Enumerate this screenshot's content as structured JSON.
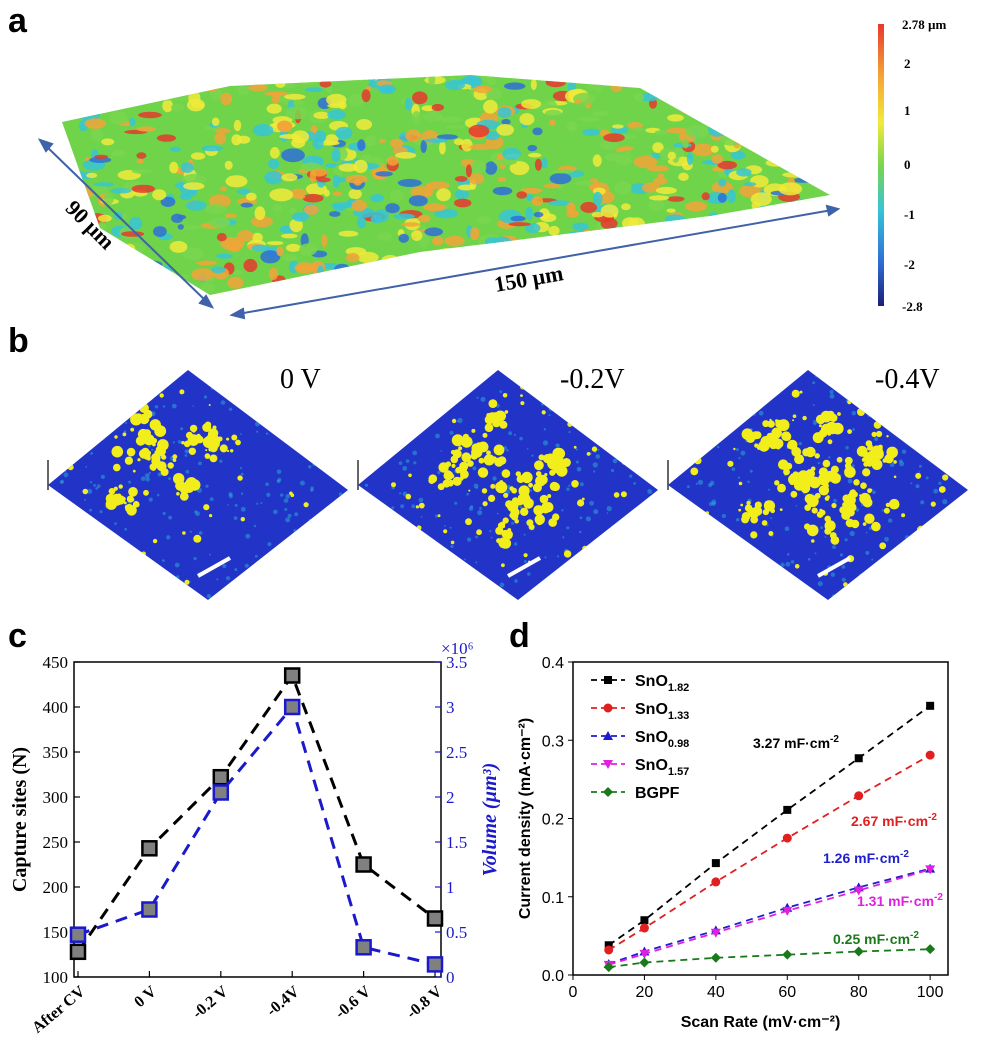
{
  "panel_labels": {
    "a": "a",
    "b": "b",
    "c": "c",
    "d": "d"
  },
  "panel_a": {
    "dim_x": "150 µm",
    "dim_y": "90 µm",
    "colorbar": {
      "ticks": [
        "2.78 µm",
        "2",
        "1",
        "0",
        "-1",
        "-2",
        "-2.8"
      ],
      "colors": [
        "#e8382d",
        "#f3a337",
        "#f2ea3a",
        "#79d64d",
        "#37c4d6",
        "#2f6fd8",
        "#1b1f78"
      ]
    }
  },
  "panel_b": {
    "titles": [
      "0 V",
      "-0.2V",
      "-0.4V"
    ],
    "colors": {
      "background": "#2234c8",
      "mid": "#2aa6d5",
      "peak": "#f2ee1c"
    }
  },
  "chart_data": [
    {
      "type": "line",
      "panel": "c",
      "categories": [
        "After CV",
        "0 V",
        "-0.2 V",
        "-0.4V",
        "-0.6 V",
        "-0.8 V"
      ],
      "ylabel": "Capture sites (N)",
      "ylim": [
        100,
        450
      ],
      "yticks": [
        "100",
        "150",
        "200",
        "250",
        "300",
        "350",
        "400",
        "450"
      ],
      "y2label": "Volume (µm³)",
      "y2_scale": "×10⁶",
      "y2lim": [
        0,
        3.5
      ],
      "y2ticks": [
        "0",
        "0.5",
        "1",
        "1.5",
        "2",
        "2.5",
        "3",
        "3.5"
      ],
      "series": [
        {
          "name": "Capture sites",
          "axis": "left",
          "color": "#000000",
          "values": [
            128,
            243,
            322,
            435,
            225,
            165
          ]
        },
        {
          "name": "Volume",
          "axis": "right",
          "color": "#1a1acc",
          "values": [
            0.47,
            0.75,
            2.05,
            3.0,
            0.33,
            0.14
          ]
        }
      ]
    },
    {
      "type": "line",
      "panel": "d",
      "xlabel": "Scan Rate (mV·cm⁻²)",
      "ylabel": "Current density (mA·cm⁻²)",
      "x": [
        10,
        20,
        40,
        60,
        80,
        100
      ],
      "xlim": [
        0,
        105
      ],
      "xticks": [
        "0",
        "20",
        "40",
        "60",
        "80",
        "100"
      ],
      "ylim": [
        0,
        0.4
      ],
      "yticks": [
        "0.0",
        "0.1",
        "0.2",
        "0.3",
        "0.4"
      ],
      "series": [
        {
          "name": "SnO",
          "sub": "1.82",
          "color": "#000000",
          "marker": "square",
          "values": [
            0.038,
            0.07,
            0.143,
            0.211,
            0.277,
            0.344
          ],
          "annotation": "3.27 mF·cm",
          "annotation_sup": "-2"
        },
        {
          "name": "SnO",
          "sub": "1.33",
          "color": "#e02020",
          "marker": "circle",
          "values": [
            0.032,
            0.06,
            0.119,
            0.175,
            0.229,
            0.281
          ],
          "annotation": "2.67 mF·cm",
          "annotation_sup": "-2"
        },
        {
          "name": "SnO",
          "sub": "0.98",
          "color": "#1e1ecc",
          "marker": "triangle-up",
          "values": [
            0.014,
            0.03,
            0.057,
            0.086,
            0.112,
            0.136
          ],
          "annotation": "1.26 mF·cm",
          "annotation_sup": "-2"
        },
        {
          "name": "SnO",
          "sub": "1.57",
          "color": "#e020e0",
          "marker": "triangle-down",
          "values": [
            0.013,
            0.027,
            0.054,
            0.082,
            0.108,
            0.135
          ],
          "annotation": "1.31 mF·cm",
          "annotation_sup": "-2"
        },
        {
          "name": "BGPF",
          "sub": "",
          "color": "#1a7a1a",
          "marker": "diamond",
          "values": [
            0.01,
            0.016,
            0.022,
            0.026,
            0.03,
            0.033
          ],
          "annotation": "0.25 mF·cm",
          "annotation_sup": "-2"
        }
      ]
    }
  ]
}
